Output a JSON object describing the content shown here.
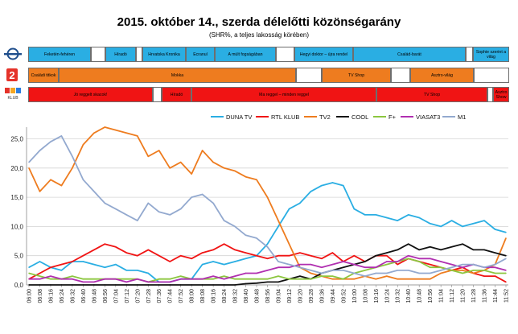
{
  "header": {
    "title": "2015. október 14., szerda délelőtti közönségarány",
    "subtitle": "(SHR%, a teljes lakosság körében)"
  },
  "logos": {
    "duna": "Duna TV logo",
    "tv2": "TV2 logo",
    "rtl": "RTL Klub logo"
  },
  "schedule": {
    "duna": {
      "color": "#2aaee3",
      "blocks": [
        {
          "label": "Feketén-fehéren",
          "color": "#2aaee3"
        },
        {
          "label": "",
          "color": "#ffffff"
        },
        {
          "label": "Híradó",
          "color": "#2aaee3"
        },
        {
          "label": "",
          "color": "#ffffff"
        },
        {
          "label": "Hrvatska Kronika",
          "color": "#2aaee3"
        },
        {
          "label": "Ecranul",
          "color": "#2aaee3"
        },
        {
          "label": "A múlt fogságában",
          "color": "#2aaee3"
        },
        {
          "label": "",
          "color": "#ffffff"
        },
        {
          "label": "Hegyi doktor – újra rendel",
          "color": "#2aaee3"
        },
        {
          "label": "Család-barát",
          "color": "#2aaee3"
        },
        {
          "label": "",
          "color": "#ffffff"
        },
        {
          "label": "Sophie szerint a világ",
          "color": "#2aaee3"
        }
      ]
    },
    "tv2": {
      "color": "#ee7c1f",
      "blocks": [
        {
          "label": "Családi titkok",
          "color": "#ee7c1f"
        },
        {
          "label": "Mokka",
          "color": "#ee7c1f"
        },
        {
          "label": "",
          "color": "#ffffff"
        },
        {
          "label": "TV Shop",
          "color": "#ee7c1f"
        },
        {
          "label": "",
          "color": "#ffffff"
        },
        {
          "label": "Asztro-világ",
          "color": "#ee7c1f"
        },
        {
          "label": "",
          "color": "#ffffff"
        }
      ]
    },
    "rtl": {
      "color": "#f01414",
      "blocks": [
        {
          "label": "Jó reggelt skacok!",
          "color": "#f01414"
        },
        {
          "label": "",
          "color": "#ffffff"
        },
        {
          "label": "Híradó",
          "color": "#f01414"
        },
        {
          "label": "Ma reggel – minden reggel",
          "color": "#f01414"
        },
        {
          "label": "TV Shop",
          "color": "#f01414"
        },
        {
          "label": "",
          "color": "#ffffff"
        },
        {
          "label": "Asztro Show",
          "color": "#f01414"
        }
      ]
    }
  },
  "chart_data": {
    "type": "line",
    "title": "2015. október 14., szerda délelőtti közönségarány",
    "subtitle": "(SHR%, a teljes lakosság körében)",
    "xlabel": "",
    "ylabel": "",
    "ylim": [
      0,
      27
    ],
    "yticks": [
      "0,0",
      "5,0",
      "10,0",
      "15,0",
      "20,0",
      "25,0"
    ],
    "grid": true,
    "legend_position": "top",
    "x": [
      "06:00",
      "06:08",
      "06:16",
      "06:24",
      "06:32",
      "06:40",
      "06:48",
      "06:56",
      "07:04",
      "07:12",
      "07:20",
      "07:28",
      "07:36",
      "07:44",
      "07:52",
      "08:00",
      "08:08",
      "08:16",
      "08:24",
      "08:32",
      "08:40",
      "08:48",
      "08:56",
      "09:04",
      "09:12",
      "09:20",
      "09:28",
      "09:36",
      "09:44",
      "09:52",
      "10:00",
      "10:08",
      "10:16",
      "10:24",
      "10:32",
      "10:40",
      "10:48",
      "10:56",
      "11:04",
      "11:12",
      "11:20",
      "11:28",
      "11:36",
      "11:44",
      "11:52"
    ],
    "series": [
      {
        "name": "DUNA TV",
        "color": "#2aaee3",
        "values": [
          3.0,
          4.0,
          3.0,
          2.5,
          4.0,
          4.0,
          3.5,
          3.0,
          3.5,
          2.5,
          2.5,
          2.0,
          0.5,
          0.5,
          1.0,
          1.0,
          3.5,
          4.0,
          3.5,
          4.0,
          4.5,
          5.0,
          7.0,
          10.0,
          13.0,
          14.0,
          16.0,
          17.0,
          17.5,
          17.0,
          13.0,
          12.0,
          12.0,
          11.5,
          11.0,
          12.0,
          11.5,
          10.5,
          10.0,
          11.0,
          10.0,
          10.5,
          11.0,
          9.5,
          9.0
        ]
      },
      {
        "name": "RTL KLUB",
        "color": "#f01414",
        "values": [
          1.0,
          2.0,
          3.0,
          3.5,
          4.0,
          5.0,
          6.0,
          7.0,
          6.5,
          5.5,
          5.0,
          6.0,
          5.0,
          4.0,
          5.0,
          4.5,
          5.5,
          6.0,
          7.0,
          6.0,
          5.5,
          5.0,
          4.5,
          5.0,
          5.0,
          5.5,
          5.0,
          4.5,
          5.5,
          4.0,
          5.0,
          4.0,
          5.0,
          5.0,
          3.5,
          4.5,
          4.0,
          3.5,
          3.0,
          2.5,
          3.0,
          2.0,
          1.5,
          1.5,
          0.5
        ]
      },
      {
        "name": "TV2",
        "color": "#ee7c1f",
        "values": [
          20.0,
          16.0,
          18.0,
          17.0,
          20.0,
          24.0,
          26.0,
          27.0,
          26.5,
          26.0,
          25.5,
          22.0,
          23.0,
          20.0,
          21.0,
          19.0,
          23.0,
          21.0,
          20.0,
          19.5,
          18.5,
          18.0,
          15.0,
          11.0,
          7.0,
          3.0,
          2.0,
          1.5,
          1.0,
          1.0,
          1.0,
          1.5,
          1.0,
          1.5,
          1.0,
          1.0,
          1.0,
          1.0,
          2.0,
          2.5,
          2.5,
          2.0,
          2.5,
          3.5,
          8.0
        ]
      },
      {
        "name": "COOL",
        "color": "#111111",
        "values": [
          0.0,
          0.0,
          0.0,
          0.0,
          0.0,
          0.0,
          0.0,
          0.0,
          0.0,
          0.0,
          0.0,
          0.0,
          0.0,
          0.0,
          0.0,
          0.0,
          0.0,
          0.0,
          0.0,
          0.0,
          0.2,
          0.3,
          0.5,
          0.5,
          1.0,
          1.5,
          1.0,
          2.0,
          2.5,
          3.0,
          3.5,
          4.0,
          5.0,
          5.5,
          6.0,
          7.0,
          6.0,
          6.5,
          6.0,
          6.5,
          7.0,
          6.0,
          6.0,
          5.5,
          5.0
        ]
      },
      {
        "name": "F+",
        "color": "#8cc63f",
        "values": [
          2.0,
          1.5,
          1.0,
          1.0,
          1.5,
          1.0,
          1.0,
          1.0,
          1.0,
          1.0,
          1.0,
          0.5,
          1.0,
          1.0,
          1.5,
          1.0,
          1.0,
          1.0,
          1.5,
          1.0,
          1.0,
          1.0,
          1.0,
          1.5,
          1.0,
          1.0,
          1.0,
          1.5,
          1.5,
          1.0,
          2.0,
          2.5,
          3.0,
          3.5,
          4.0,
          4.5,
          4.0,
          3.0,
          3.0,
          2.5,
          2.0,
          2.5,
          2.5,
          2.0,
          2.0
        ]
      },
      {
        "name": "VIASAT3",
        "color": "#b02fb0",
        "values": [
          1.0,
          1.0,
          1.5,
          1.0,
          1.0,
          0.5,
          0.5,
          1.0,
          1.0,
          0.5,
          1.0,
          0.5,
          0.5,
          0.5,
          1.0,
          1.0,
          1.0,
          1.5,
          1.0,
          1.5,
          2.0,
          2.0,
          2.5,
          3.0,
          3.0,
          3.5,
          3.5,
          3.0,
          3.5,
          4.0,
          3.5,
          3.0,
          3.0,
          4.0,
          4.0,
          5.0,
          4.5,
          4.5,
          4.0,
          3.5,
          3.0,
          3.5,
          3.0,
          3.0,
          2.5
        ]
      },
      {
        "name": "M1",
        "color": "#93a9cf",
        "values": [
          21.0,
          23.0,
          24.5,
          25.5,
          22.0,
          18.0,
          16.0,
          14.0,
          13.0,
          12.0,
          11.0,
          14.0,
          12.5,
          12.0,
          13.0,
          15.0,
          15.5,
          14.0,
          11.0,
          10.0,
          8.5,
          8.0,
          6.5,
          4.0,
          3.5,
          3.0,
          2.5,
          2.0,
          2.5,
          2.5,
          2.0,
          1.5,
          2.0,
          2.0,
          2.5,
          2.5,
          2.0,
          2.0,
          2.5,
          3.0,
          3.5,
          3.5,
          3.0,
          3.5,
          4.5
        ]
      }
    ]
  }
}
